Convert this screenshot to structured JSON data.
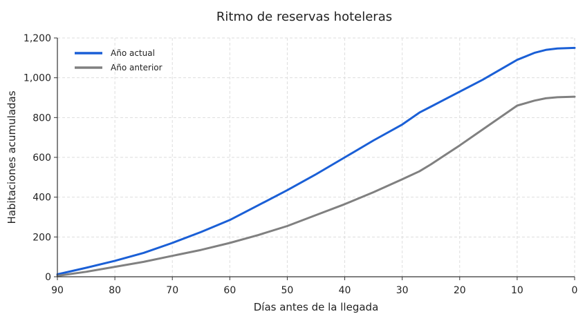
{
  "chart_data": {
    "type": "line",
    "title": "Ritmo de reservas hoteleras",
    "xlabel": "Días antes de la llegada",
    "ylabel": "Habitaciones acumuladas",
    "xlim": [
      90,
      0
    ],
    "ylim": [
      0,
      1200
    ],
    "x_ticks": [
      90,
      80,
      70,
      60,
      50,
      40,
      30,
      20,
      10,
      0
    ],
    "x_tick_labels": [
      "90",
      "80",
      "70",
      "60",
      "50",
      "40",
      "30",
      "20",
      "10",
      "0"
    ],
    "y_ticks": [
      0,
      200,
      400,
      600,
      800,
      1000,
      1200
    ],
    "y_tick_labels": [
      "0",
      "200",
      "400",
      "600",
      "800",
      "1,000",
      "1,200"
    ],
    "grid": true,
    "legend_position": "top-left",
    "x": [
      90,
      85,
      80,
      75,
      70,
      65,
      60,
      55,
      50,
      45,
      40,
      35,
      30,
      27,
      25,
      20,
      16,
      10,
      7,
      5,
      3,
      0
    ],
    "series": [
      {
        "name": "Año actual",
        "color": "#1a5fd6",
        "values": [
          12,
          45,
          80,
          120,
          170,
          225,
          285,
          360,
          435,
          515,
          600,
          685,
          765,
          825,
          855,
          930,
          990,
          1090,
          1125,
          1140,
          1147,
          1150
        ]
      },
      {
        "name": "Año anterior",
        "color": "#808080",
        "values": [
          5,
          25,
          50,
          75,
          105,
          135,
          170,
          210,
          255,
          310,
          365,
          425,
          490,
          530,
          565,
          660,
          740,
          860,
          885,
          897,
          902,
          905
        ]
      }
    ]
  }
}
